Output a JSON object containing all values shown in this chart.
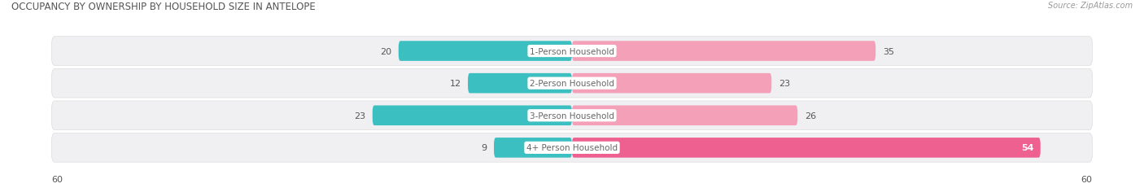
{
  "title": "OCCUPANCY BY OWNERSHIP BY HOUSEHOLD SIZE IN ANTELOPE",
  "source": "Source: ZipAtlas.com",
  "categories": [
    "1-Person Household",
    "2-Person Household",
    "3-Person Household",
    "4+ Person Household"
  ],
  "owner_values": [
    20,
    12,
    23,
    9
  ],
  "renter_values": [
    35,
    23,
    26,
    54
  ],
  "owner_color": "#3bbfc0",
  "renter_color_light": "#f4a0b8",
  "renter_color_dark": "#ee6090",
  "axis_max": 60,
  "bg_color": "#ffffff",
  "row_bg_color": "#f0f0f2",
  "title_fontsize": 8.5,
  "label_fontsize": 7.5,
  "value_fontsize": 8.0,
  "tick_fontsize": 8.0,
  "legend_fontsize": 7.5,
  "source_fontsize": 7.0,
  "title_color": "#555555",
  "label_color": "#666666",
  "value_color": "#555555",
  "source_color": "#999999"
}
